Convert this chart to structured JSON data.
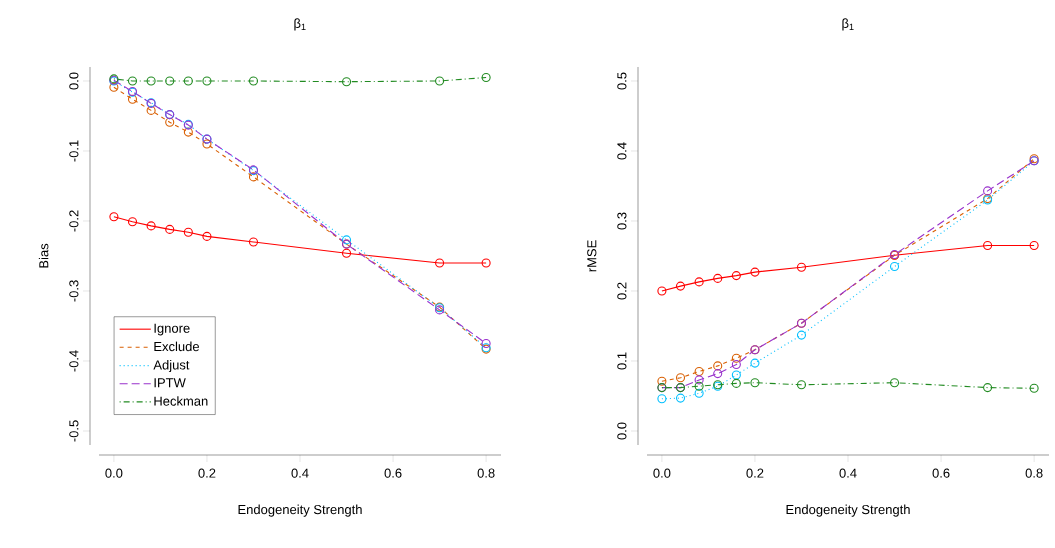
{
  "chart_data": [
    {
      "type": "line",
      "title": "β$_{1}$",
      "xlabel": "Endogeneity Strength",
      "ylabel": "Bias",
      "marker": "circle",
      "legend": "bottom left",
      "x": [
        0,
        0.04,
        0.08,
        0.12,
        0.16,
        0.2,
        0.3,
        0.5,
        0.7,
        0.8
      ],
      "xlim": [
        -0.032,
        0.832
      ],
      "ylim": [
        -0.52,
        0.02
      ],
      "xticks": [
        {
          "value": 0,
          "label": "0.0"
        },
        {
          "value": 0.2,
          "label": "0.2"
        },
        {
          "value": 0.4,
          "label": "0.4"
        },
        {
          "value": 0.6,
          "label": "0.6"
        },
        {
          "value": 0.8,
          "label": "0.8"
        }
      ],
      "yticks": [
        {
          "value": -0.5,
          "label": "-0.5"
        },
        {
          "value": -0.4,
          "label": "-0.4"
        },
        {
          "value": -0.3,
          "label": "-0.3"
        },
        {
          "value": -0.2,
          "label": "-0.2"
        },
        {
          "value": -0.1,
          "label": "-0.1"
        },
        {
          "value": 0,
          "label": "0.0"
        }
      ],
      "series": [
        {
          "name": "Ignore",
          "color": "#ff0000",
          "line_style": "solid",
          "values": [
            -0.194,
            -0.201,
            -0.207,
            -0.212,
            -0.216,
            -0.222,
            -0.23,
            -0.246,
            -0.26,
            -0.26
          ]
        },
        {
          "name": "Exclude",
          "color": "#d95f02",
          "line_style": "dashed",
          "values": [
            -0.009,
            -0.026,
            -0.042,
            -0.059,
            -0.073,
            -0.09,
            -0.137,
            -0.233,
            -0.323,
            -0.383
          ]
        },
        {
          "name": "Adjust",
          "color": "#00bfff",
          "line_style": "dotted",
          "values": [
            0.0,
            -0.016,
            -0.031,
            -0.048,
            -0.062,
            -0.083,
            -0.128,
            -0.227,
            -0.324,
            -0.381
          ]
        },
        {
          "name": "IPTW",
          "color": "#9932cc",
          "line_style": "longdashed",
          "values": [
            0.001,
            -0.015,
            -0.032,
            -0.048,
            -0.063,
            -0.083,
            -0.127,
            -0.233,
            -0.327,
            -0.375
          ]
        },
        {
          "name": "Heckman",
          "color": "#228b22",
          "line_style": "dashdotted",
          "values": [
            0.003,
            0.0,
            0.0,
            0.0,
            0.0,
            0.0,
            0.0,
            -0.001,
            0.0,
            0.005
          ]
        }
      ]
    },
    {
      "type": "line",
      "title": "β$_{1}$",
      "xlabel": "Endogeneity Strength",
      "ylabel": "rMSE",
      "marker": "circle",
      "x": [
        0,
        0.04,
        0.08,
        0.12,
        0.16,
        0.2,
        0.3,
        0.5,
        0.7,
        0.8
      ],
      "xlim": [
        -0.032,
        0.832
      ],
      "ylim": [
        -0.02,
        0.52
      ],
      "xticks": [
        {
          "value": 0,
          "label": "0.0"
        },
        {
          "value": 0.2,
          "label": "0.2"
        },
        {
          "value": 0.4,
          "label": "0.4"
        },
        {
          "value": 0.6,
          "label": "0.6"
        },
        {
          "value": 0.8,
          "label": "0.8"
        }
      ],
      "yticks": [
        {
          "value": 0,
          "label": "0.0"
        },
        {
          "value": 0.1,
          "label": "0.1"
        },
        {
          "value": 0.2,
          "label": "0.2"
        },
        {
          "value": 0.3,
          "label": "0.3"
        },
        {
          "value": 0.4,
          "label": "0.4"
        },
        {
          "value": 0.5,
          "label": "0.5"
        }
      ],
      "series": [
        {
          "color": "#ff0000",
          "line_style": "solid",
          "values": [
            0.2,
            0.207,
            0.213,
            0.218,
            0.222,
            0.227,
            0.234,
            0.251,
            0.265,
            0.265
          ]
        },
        {
          "color": "#d95f02",
          "line_style": "dashed",
          "values": [
            0.071,
            0.076,
            0.085,
            0.093,
            0.104,
            0.116,
            0.154,
            0.251,
            0.332,
            0.389
          ]
        },
        {
          "color": "#00bfff",
          "line_style": "dotted",
          "values": [
            0.046,
            0.047,
            0.054,
            0.064,
            0.08,
            0.097,
            0.137,
            0.235,
            0.33,
            0.386
          ]
        },
        {
          "color": "#9932cc",
          "line_style": "longdashed",
          "values": [
            0.062,
            0.062,
            0.073,
            0.082,
            0.095,
            0.116,
            0.154,
            0.252,
            0.343,
            0.386
          ]
        },
        {
          "color": "#228b22",
          "line_style": "dashdotted",
          "values": [
            0.062,
            0.062,
            0.064,
            0.066,
            0.068,
            0.069,
            0.066,
            0.069,
            0.062,
            0.061
          ]
        }
      ]
    }
  ]
}
